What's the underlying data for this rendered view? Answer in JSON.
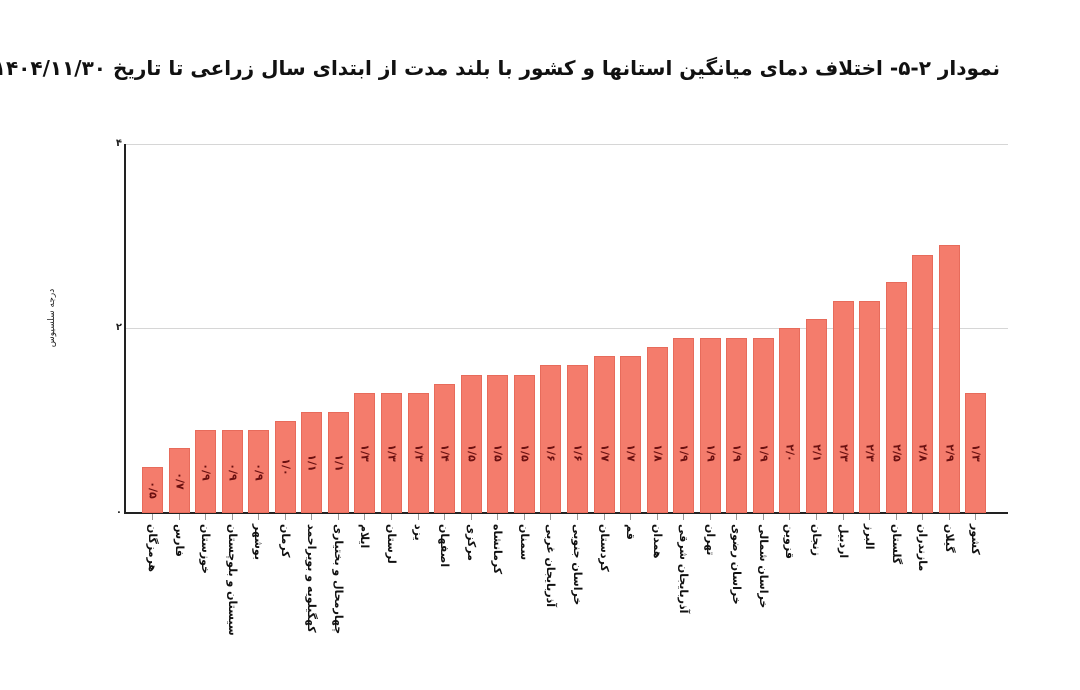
{
  "chart_data": {
    "type": "bar",
    "title": "نمودار ۲-۵- اختلاف دمای میانگین استانها و کشور با بلند مدت از ابتدای سال زراعی تا تاریخ ۱۴۰۴/۱۱/۳۰",
    "xlabel": "",
    "ylabel": "درجه سلسیوس",
    "ylim": [
      0,
      4
    ],
    "yticks": [
      0,
      2,
      4
    ],
    "ytick_labels": [
      "۰",
      "۲",
      "۴"
    ],
    "grid": true,
    "legend": null,
    "bar_color": "#f47c6c",
    "categories": [
      "هرمزگان",
      "فارس",
      "خوزستان",
      "سیستان و بلوچستان",
      "بوشهر",
      "کرمان",
      "کهگیلویه و بویراحمد",
      "چهارمحال و بختیاری",
      "ایلام",
      "لرستان",
      "یزد",
      "اصفهان",
      "مرکزی",
      "کرمانشاه",
      "سمنان",
      "آذربایجان غربی",
      "خراسان جنوبی",
      "کردستان",
      "قم",
      "همدان",
      "آذربایجان شرقی",
      "تهران",
      "خراسان رضوی",
      "خراسان شمالی",
      "قزوین",
      "زنجان",
      "اردبیل",
      "البرز",
      "گلستان",
      "مازندران",
      "گیلان",
      "کشور"
    ],
    "values": [
      0.5,
      0.7,
      0.9,
      0.9,
      0.9,
      1.0,
      1.1,
      1.1,
      1.3,
      1.3,
      1.3,
      1.4,
      1.5,
      1.5,
      1.5,
      1.6,
      1.6,
      1.7,
      1.7,
      1.8,
      1.9,
      1.9,
      1.9,
      1.9,
      2.0,
      2.1,
      2.3,
      2.3,
      2.5,
      2.8,
      2.9,
      1.3
    ],
    "value_labels": [
      "۰/۵",
      "۰/۷",
      "۰/۹",
      "۰/۹",
      "۰/۹",
      "۱/۰",
      "۱/۱",
      "۱/۱",
      "۱/۳",
      "۱/۳",
      "۱/۳",
      "۱/۴",
      "۱/۵",
      "۱/۵",
      "۱/۵",
      "۱/۶",
      "۱/۶",
      "۱/۷",
      "۱/۷",
      "۱/۸",
      "۱/۹",
      "۱/۹",
      "۱/۹",
      "۱/۹",
      "۲/۰",
      "۲/۱",
      "۲/۳",
      "۲/۳",
      "۲/۵",
      "۲/۸",
      "۲/۹",
      "۱/۳"
    ]
  }
}
